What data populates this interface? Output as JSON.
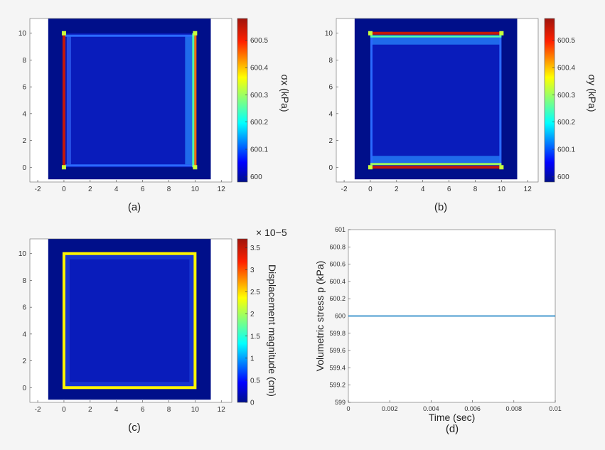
{
  "chart_data": [
    {
      "panel": "(a)",
      "type": "heatmap",
      "x_ticks": [
        "-2",
        "0",
        "2",
        "4",
        "6",
        "8",
        "10",
        "12"
      ],
      "y_ticks": [
        "0",
        "2",
        "4",
        "6",
        "8",
        "10"
      ],
      "xlim": [
        -2.6,
        12.8
      ],
      "ylim": [
        -1.1,
        11.1
      ],
      "domain": {
        "x": [
          -1.2,
          11.2
        ],
        "y": [
          -0.9,
          11.1
        ]
      },
      "colorbar": {
        "label": "σx (kPa)",
        "ticks": [
          "600",
          "600.1",
          "600.2",
          "600.3",
          "600.4",
          "600.5"
        ],
        "range": [
          599.98,
          600.58
        ]
      },
      "features": [
        {
          "where": "left edge x=0, y 0 to 10",
          "value": 600.55
        },
        {
          "where": "right edge x=10, y 0 to 10",
          "value": 600.4
        },
        {
          "where": "top and bottom edges",
          "value": 600.05
        },
        {
          "where": "interior",
          "value": 600.0
        }
      ]
    },
    {
      "panel": "(b)",
      "type": "heatmap",
      "x_ticks": [
        "-2",
        "0",
        "2",
        "4",
        "6",
        "8",
        "10",
        "12"
      ],
      "y_ticks": [
        "0",
        "2",
        "4",
        "6",
        "8",
        "10"
      ],
      "xlim": [
        -2.6,
        12.8
      ],
      "ylim": [
        -1.1,
        11.1
      ],
      "domain": {
        "x": [
          -1.2,
          11.2
        ],
        "y": [
          -0.9,
          11.1
        ]
      },
      "colorbar": {
        "label": "σy (kPa)",
        "ticks": [
          "600",
          "600.1",
          "600.2",
          "600.3",
          "600.4",
          "600.5"
        ],
        "range": [
          599.98,
          600.58
        ]
      },
      "features": [
        {
          "where": "top edge y=10, x 0 to 10",
          "value": 600.55
        },
        {
          "where": "bottom edge y=0, x 0 to 10",
          "value": 600.55
        },
        {
          "where": "left and right edges",
          "value": 600.05
        },
        {
          "where": "interior",
          "value": 600.0
        }
      ]
    },
    {
      "panel": "(c)",
      "type": "heatmap",
      "x_ticks": [
        "-2",
        "0",
        "2",
        "4",
        "6",
        "8",
        "10",
        "12"
      ],
      "y_ticks": [
        "0",
        "2",
        "4",
        "6",
        "8",
        "10"
      ],
      "xlim": [
        -2.6,
        12.8
      ],
      "ylim": [
        -1.1,
        11.1
      ],
      "domain": {
        "x": [
          -1.2,
          11.2
        ],
        "y": [
          -0.9,
          11.1
        ]
      },
      "colorbar": {
        "label": "Displacement magnitude (cm)",
        "multiplier": "× 10−5",
        "ticks": [
          "0",
          "0.5",
          "1",
          "1.5",
          "2",
          "2.5",
          "3",
          "3.5"
        ],
        "range": [
          0,
          3.7
        ]
      },
      "features": [
        {
          "where": "square boundary x=0..10, y=0..10",
          "value": 2.4
        },
        {
          "where": "interior",
          "value": 0.15
        }
      ]
    },
    {
      "panel": "(d)",
      "type": "line",
      "xlabel": "Time (sec)",
      "ylabel": "Volumetric stress p (kPa)",
      "xlim": [
        0,
        0.01
      ],
      "ylim": [
        599,
        601
      ],
      "x_ticks": [
        "0",
        "0.002",
        "0.004",
        "0.006",
        "0.008",
        "0.01"
      ],
      "y_ticks": [
        "599",
        "599.2",
        "599.4",
        "599.6",
        "599.8",
        "600",
        "600.2",
        "600.4",
        "600.6",
        "600.8",
        "601"
      ],
      "series": [
        {
          "x": [
            0,
            0.01
          ],
          "y": [
            600,
            600
          ],
          "color": "#0072bd"
        }
      ]
    }
  ],
  "labels": {
    "a": "(a)",
    "b": "(b)",
    "c": "(c)",
    "d": "(d)"
  },
  "colors": {
    "low": "#000f8a",
    "high": "#a0140c",
    "line": "#0072bd"
  }
}
